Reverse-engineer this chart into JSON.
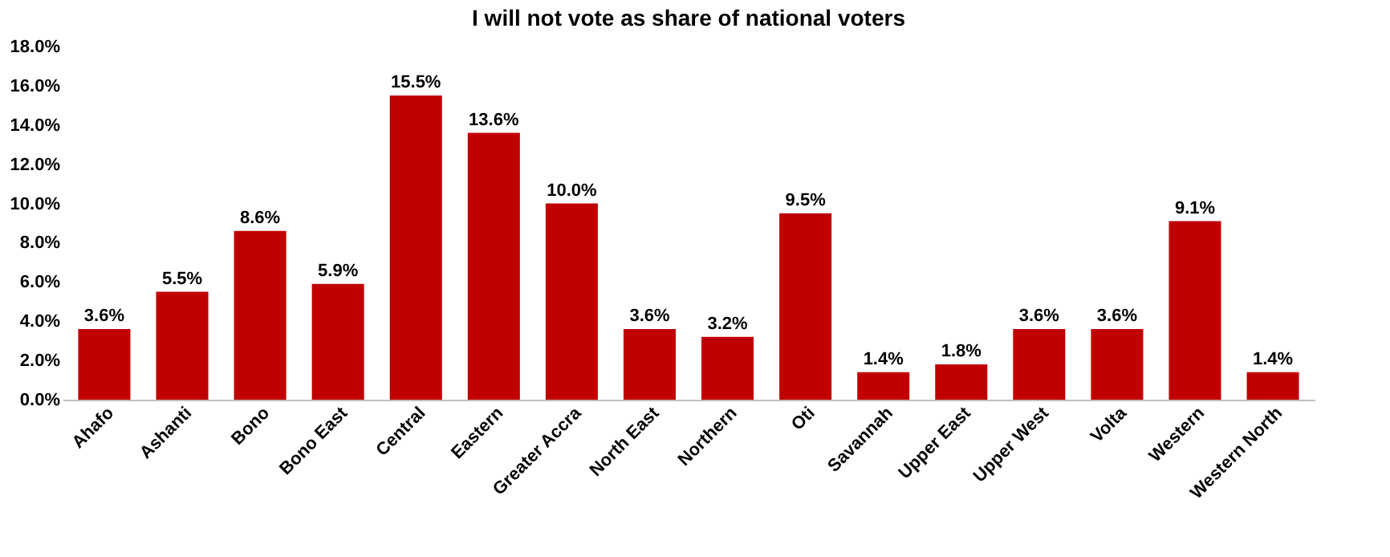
{
  "chart_data": {
    "type": "bar",
    "title": "I will not vote as share of national voters",
    "categories": [
      "Ahafo",
      "Ashanti",
      "Bono",
      "Bono East",
      "Central",
      "Eastern",
      "Greater Accra",
      "North East",
      "Northern",
      "Oti",
      "Savannah",
      "Upper East",
      "Upper West",
      "Volta",
      "Western",
      "Western North"
    ],
    "values": [
      3.6,
      5.5,
      8.6,
      5.9,
      15.5,
      13.6,
      10.0,
      3.6,
      3.2,
      9.5,
      1.4,
      1.8,
      3.6,
      3.6,
      9.1,
      1.4
    ],
    "value_labels": [
      "3.6%",
      "5.5%",
      "8.6%",
      "5.9%",
      "15.5%",
      "13.6%",
      "10.0%",
      "3.6%",
      "3.2%",
      "9.5%",
      "1.4%",
      "1.8%",
      "3.6%",
      "3.6%",
      "9.1%",
      "1.4%"
    ],
    "color": "#c00000",
    "ylim": [
      0,
      18
    ],
    "yticks": [
      {
        "value": 0,
        "label": "0.0%"
      },
      {
        "value": 2,
        "label": "2.0%"
      },
      {
        "value": 4,
        "label": "4.0%"
      },
      {
        "value": 6,
        "label": "6.0%"
      },
      {
        "value": 8,
        "label": "8.0%"
      },
      {
        "value": 10,
        "label": "10.0%"
      },
      {
        "value": 12,
        "label": "12.0%"
      },
      {
        "value": 14,
        "label": "14.0%"
      },
      {
        "value": 16,
        "label": "16.0%"
      },
      {
        "value": 18,
        "label": "18.0%"
      }
    ],
    "grid": false
  }
}
